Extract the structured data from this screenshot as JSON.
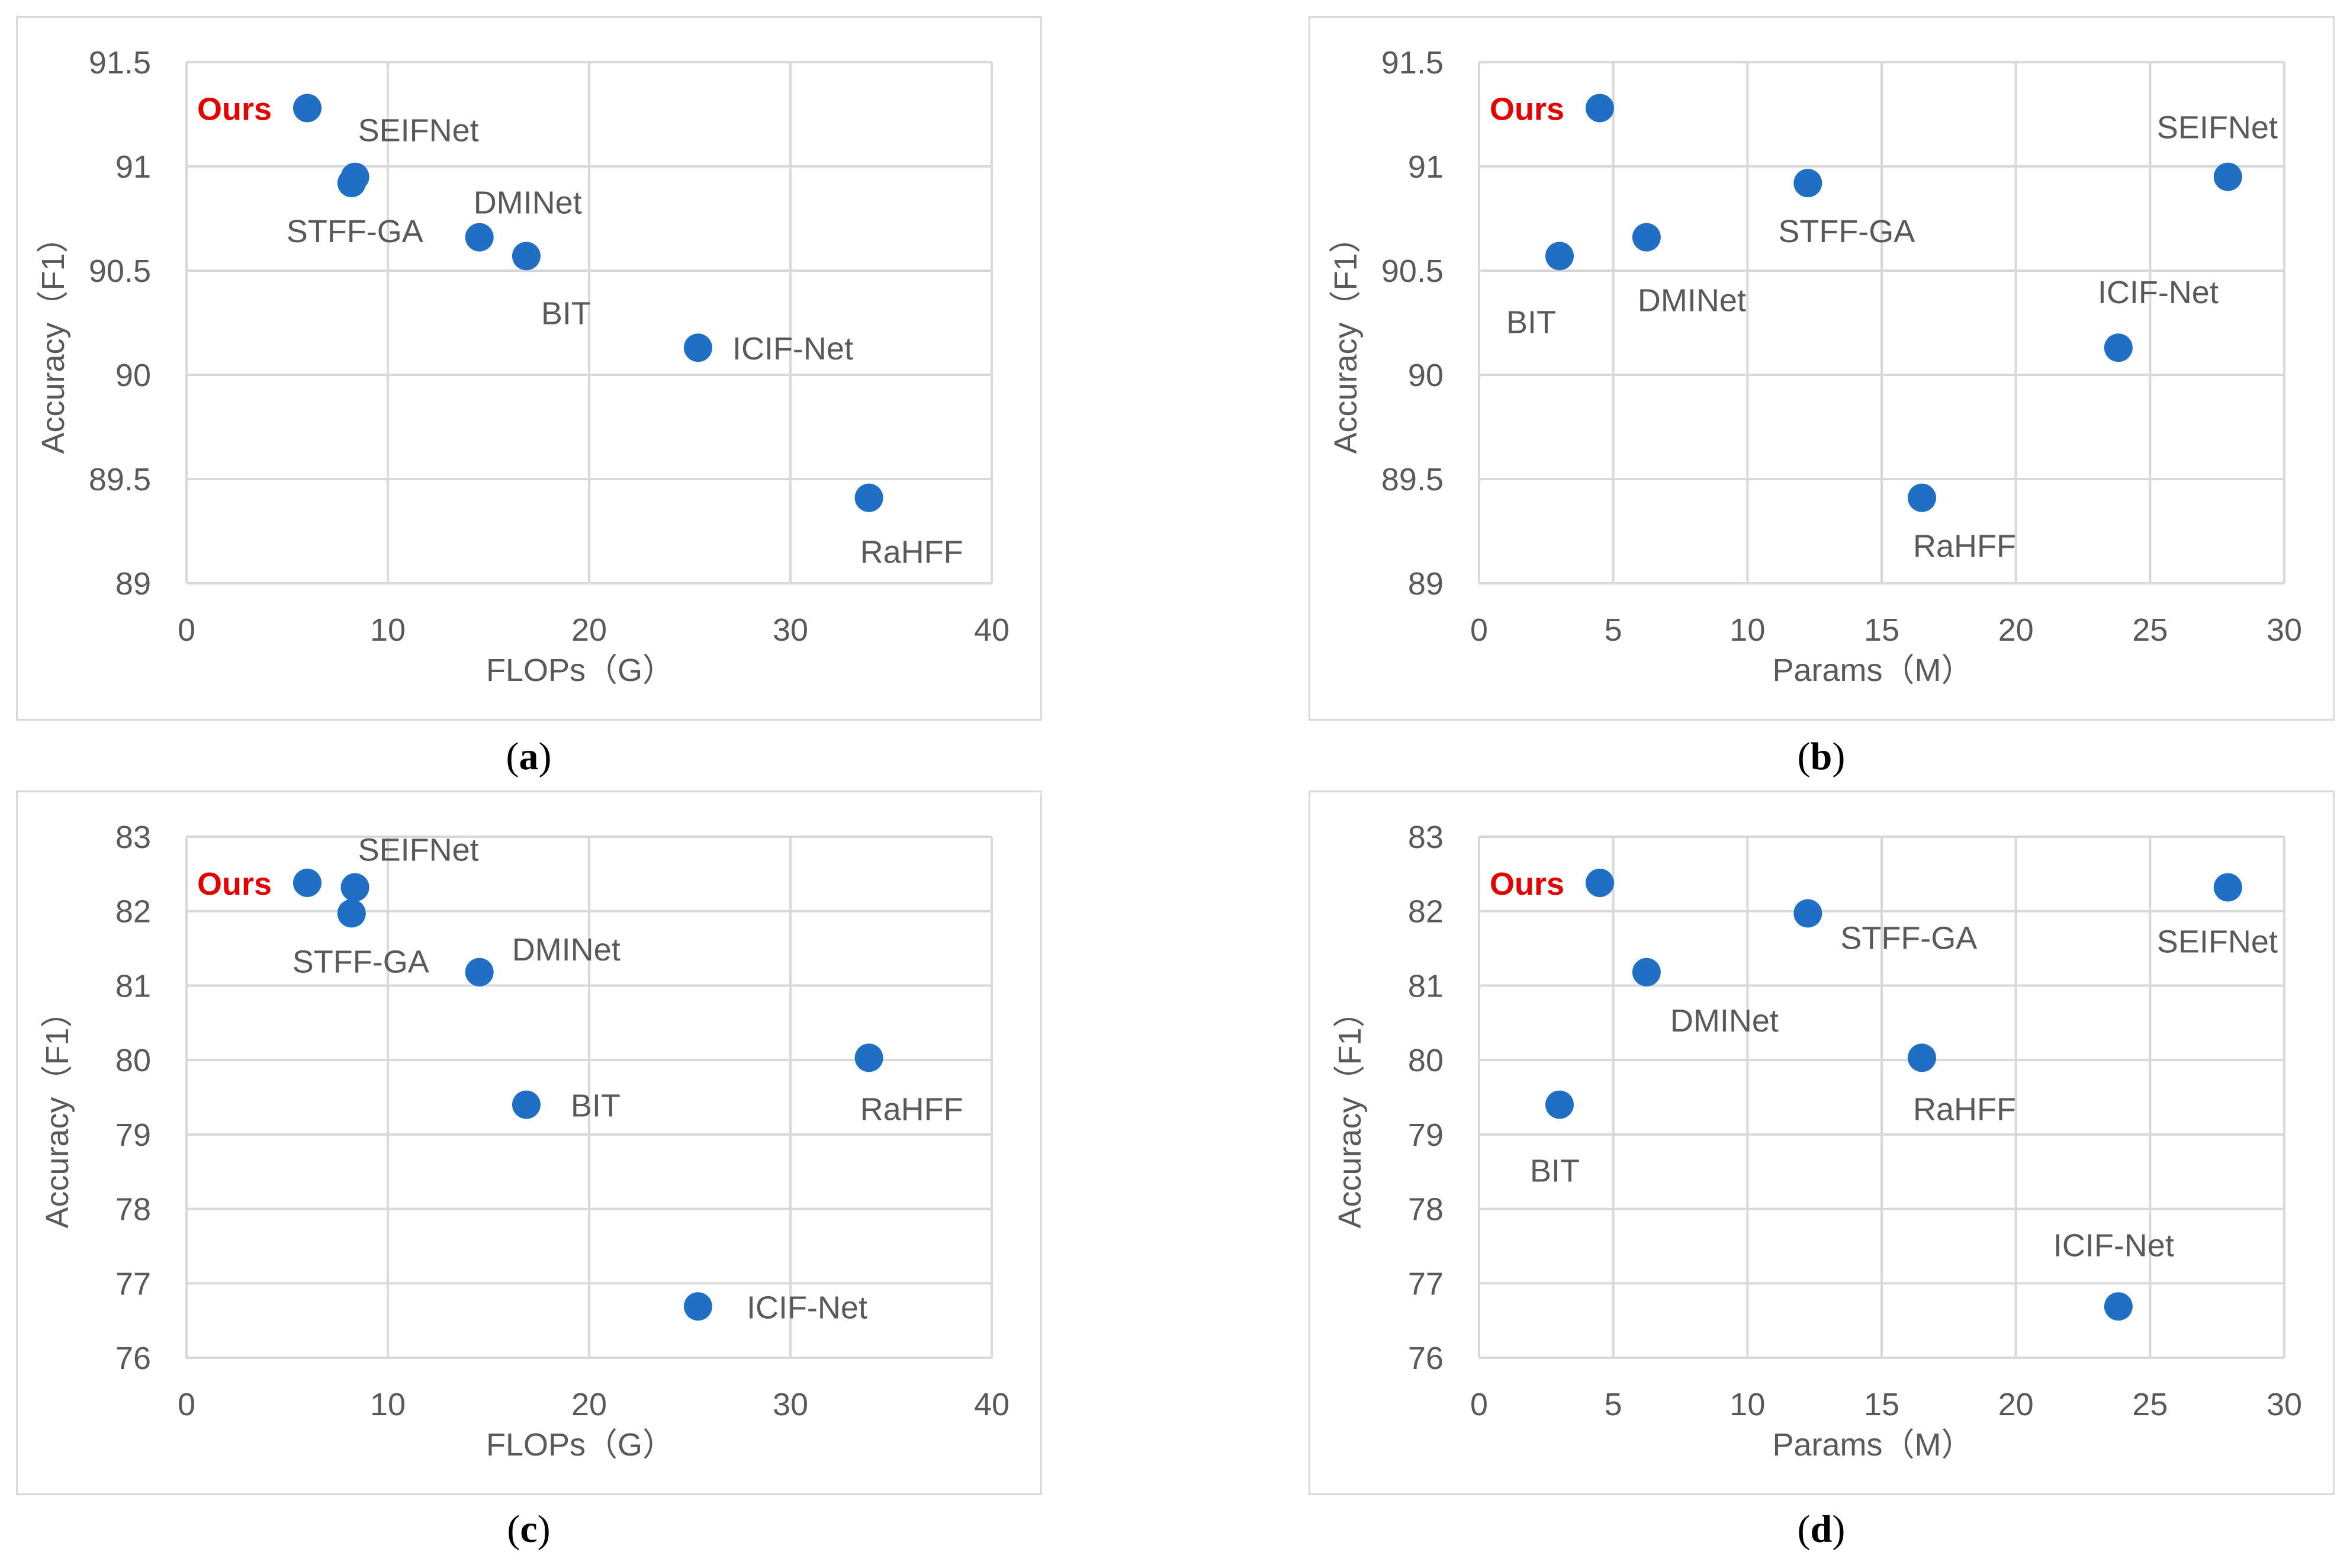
{
  "colors": {
    "marker": "#1f6fc5",
    "highlight": "#e60000",
    "grid": "#d9d9d9",
    "text": "#595959",
    "frame": "#d9d9d9"
  },
  "chart_data": [
    {
      "panel": "a",
      "type": "scatter",
      "caption": "a",
      "xlabel": "FLOPs（G）",
      "ylabel": "Accuracy（F1）",
      "xlim": [
        0,
        40
      ],
      "ylim": [
        89,
        91.5
      ],
      "xticks": [
        "0",
        "10",
        "20",
        "30",
        "40"
      ],
      "xtick_values": [
        0,
        10,
        20,
        30,
        40
      ],
      "yticks": [
        "89",
        "89.5",
        "90",
        "90.5",
        "91",
        "91.5"
      ],
      "ytick_values": [
        89,
        89.5,
        90,
        90.5,
        91,
        91.5
      ],
      "points": [
        {
          "name": "Ours",
          "x": 6.0,
          "y": 91.28,
          "highlight": true
        },
        {
          "name": "SEIFNet",
          "x": 8.37,
          "y": 90.95
        },
        {
          "name": "STFF-GA",
          "x": 8.2,
          "y": 90.92
        },
        {
          "name": "DMINet",
          "x": 14.55,
          "y": 90.66
        },
        {
          "name": "BIT",
          "x": 16.88,
          "y": 90.57
        },
        {
          "name": "ICIF-Net",
          "x": 25.41,
          "y": 90.13
        },
        {
          "name": "RaHFF",
          "x": 33.9,
          "y": 89.41
        }
      ]
    },
    {
      "panel": "b",
      "type": "scatter",
      "caption": "b",
      "xlabel": "Params（M）",
      "ylabel": "Accuracy（F1）",
      "xlim": [
        0,
        30
      ],
      "ylim": [
        89,
        91.5
      ],
      "xticks": [
        "0",
        "5",
        "10",
        "15",
        "20",
        "25",
        "30"
      ],
      "xtick_values": [
        0,
        5,
        10,
        15,
        20,
        25,
        30
      ],
      "yticks": [
        "89",
        "89.5",
        "90",
        "90.5",
        "91",
        "91.5"
      ],
      "ytick_values": [
        89,
        89.5,
        90,
        90.5,
        91,
        91.5
      ],
      "points": [
        {
          "name": "Ours",
          "x": 4.5,
          "y": 91.28,
          "highlight": true
        },
        {
          "name": "SEIFNet",
          "x": 27.9,
          "y": 90.95
        },
        {
          "name": "STFF-GA",
          "x": 12.25,
          "y": 90.92
        },
        {
          "name": "DMINet",
          "x": 6.24,
          "y": 90.66
        },
        {
          "name": "BIT",
          "x": 3.0,
          "y": 90.57
        },
        {
          "name": "ICIF-Net",
          "x": 23.82,
          "y": 90.13
        },
        {
          "name": "RaHFF",
          "x": 16.5,
          "y": 89.41
        }
      ]
    },
    {
      "panel": "c",
      "type": "scatter",
      "caption": "c",
      "xlabel": "FLOPs（G）",
      "ylabel": "Accuracy（F1）",
      "xlim": [
        0,
        40
      ],
      "ylim": [
        76,
        83
      ],
      "xticks": [
        "0",
        "10",
        "20",
        "30",
        "40"
      ],
      "xtick_values": [
        0,
        10,
        20,
        30,
        40
      ],
      "yticks": [
        "76",
        "77",
        "78",
        "79",
        "80",
        "81",
        "82",
        "83"
      ],
      "ytick_values": [
        76,
        77,
        78,
        79,
        80,
        81,
        82,
        83
      ],
      "points": [
        {
          "name": "Ours",
          "x": 6.0,
          "y": 82.38,
          "highlight": true
        },
        {
          "name": "SEIFNet",
          "x": 8.37,
          "y": 82.32
        },
        {
          "name": "STFF-GA",
          "x": 8.2,
          "y": 81.97
        },
        {
          "name": "DMINet",
          "x": 14.55,
          "y": 81.18
        },
        {
          "name": "BIT",
          "x": 16.88,
          "y": 79.4
        },
        {
          "name": "RaHFF",
          "x": 33.9,
          "y": 80.03
        },
        {
          "name": "ICIF-Net",
          "x": 25.41,
          "y": 76.69
        }
      ]
    },
    {
      "panel": "d",
      "type": "scatter",
      "caption": "d",
      "xlabel": "Params（M）",
      "ylabel": "Accuracy（F1）",
      "xlim": [
        0,
        30
      ],
      "ylim": [
        76,
        83
      ],
      "xticks": [
        "0",
        "5",
        "10",
        "15",
        "20",
        "25",
        "30"
      ],
      "xtick_values": [
        0,
        5,
        10,
        15,
        20,
        25,
        30
      ],
      "yticks": [
        "76",
        "77",
        "78",
        "79",
        "80",
        "81",
        "82",
        "83"
      ],
      "ytick_values": [
        76,
        77,
        78,
        79,
        80,
        81,
        82,
        83
      ],
      "points": [
        {
          "name": "Ours",
          "x": 4.5,
          "y": 82.38,
          "highlight": true
        },
        {
          "name": "SEIFNet",
          "x": 27.9,
          "y": 82.32
        },
        {
          "name": "STFF-GA",
          "x": 12.25,
          "y": 81.97
        },
        {
          "name": "DMINet",
          "x": 6.24,
          "y": 81.18
        },
        {
          "name": "BIT",
          "x": 3.0,
          "y": 79.4
        },
        {
          "name": "RaHFF",
          "x": 16.5,
          "y": 80.03
        },
        {
          "name": "ICIF-Net",
          "x": 23.82,
          "y": 76.69
        }
      ]
    }
  ]
}
